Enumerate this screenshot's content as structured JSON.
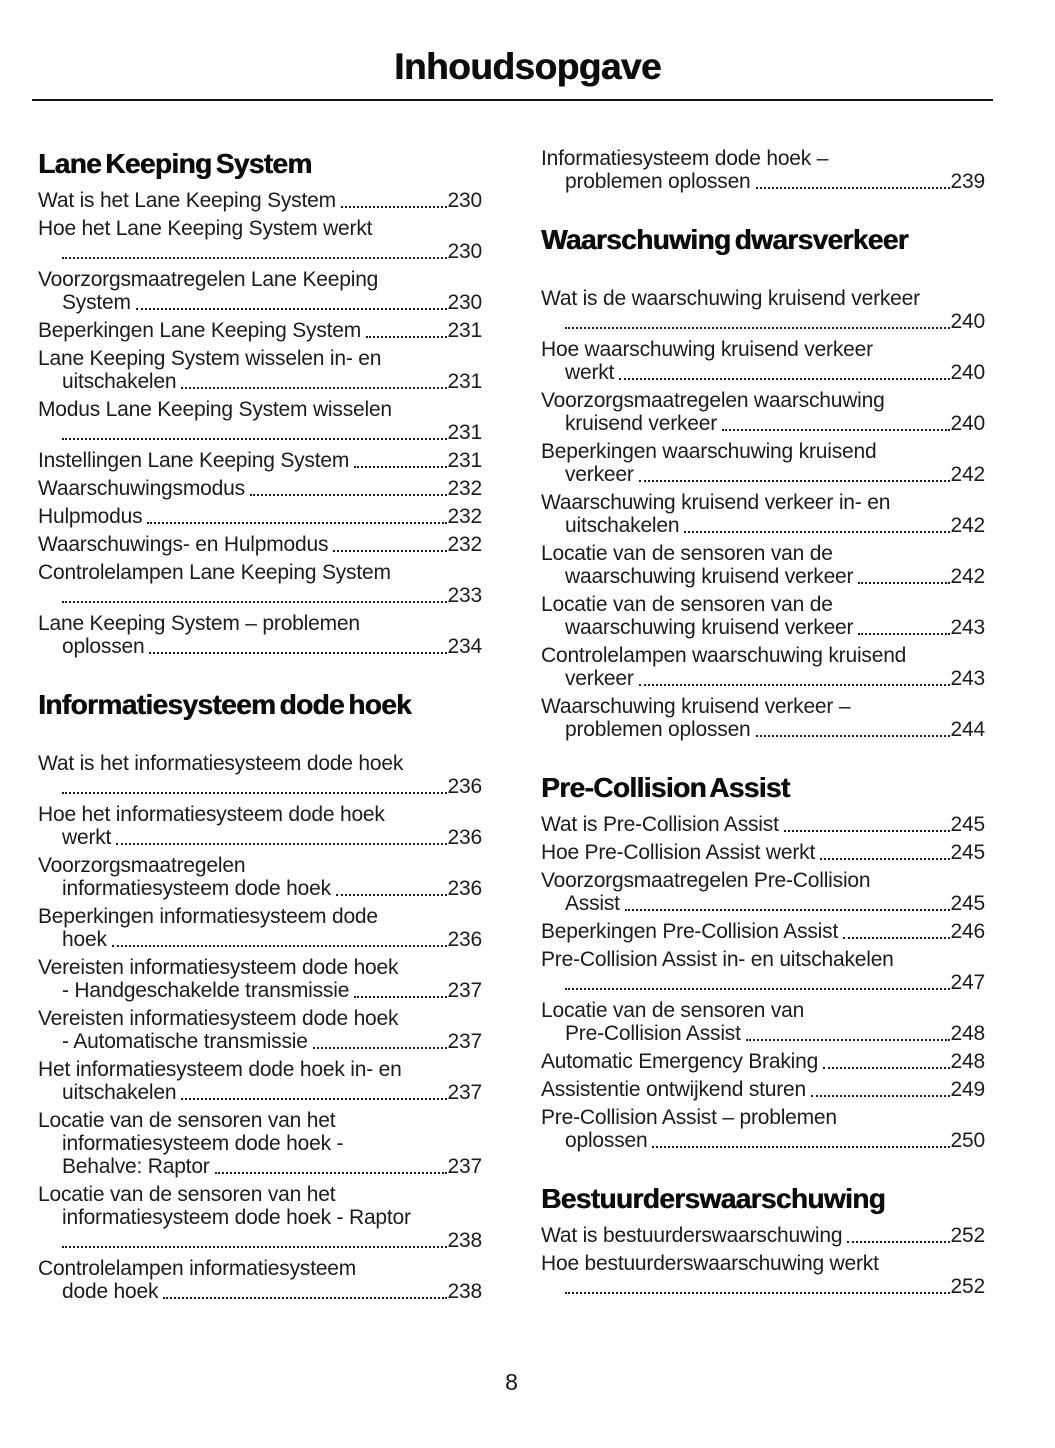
{
  "page": {
    "title": "Inhoudsopgave",
    "page_number": "8"
  },
  "columns": [
    {
      "blocks": [
        {
          "heading": "Lane Keeping System",
          "gap_after_heading": false,
          "entries": [
            {
              "lines": [
                "Wat is het Lane Keeping System"
              ],
              "page": "230"
            },
            {
              "lines": [
                "Hoe het Lane Keeping System werkt",
                ""
              ],
              "page": "230"
            },
            {
              "lines": [
                "Voorzorgsmaatregelen Lane Keeping",
                "System"
              ],
              "page": "230"
            },
            {
              "lines": [
                "Beperkingen Lane Keeping System"
              ],
              "page": "231"
            },
            {
              "lines": [
                "Lane Keeping System wisselen in- en",
                "uitschakelen"
              ],
              "page": "231"
            },
            {
              "lines": [
                "Modus Lane Keeping System wisselen",
                ""
              ],
              "page": "231"
            },
            {
              "lines": [
                "Instellingen Lane Keeping System"
              ],
              "page": "231"
            },
            {
              "lines": [
                "Waarschuwingsmodus"
              ],
              "page": "232"
            },
            {
              "lines": [
                "Hulpmodus"
              ],
              "page": "232"
            },
            {
              "lines": [
                "Waarschuwings- en Hulpmodus"
              ],
              "page": "232"
            },
            {
              "lines": [
                "Controlelampen Lane Keeping System",
                ""
              ],
              "page": "233"
            },
            {
              "lines": [
                "Lane Keeping System – problemen",
                "oplossen"
              ],
              "page": "234"
            }
          ]
        },
        {
          "heading": "Informatiesysteem dode hoek",
          "gap_after_heading": true,
          "entries": [
            {
              "lines": [
                "Wat is het informatiesysteem dode hoek",
                ""
              ],
              "page": "236"
            },
            {
              "lines": [
                "Hoe het informatiesysteem dode hoek",
                "werkt"
              ],
              "page": "236"
            },
            {
              "lines": [
                "Voorzorgsmaatregelen",
                "informatiesysteem dode hoek"
              ],
              "page": "236"
            },
            {
              "lines": [
                "Beperkingen informatiesysteem dode",
                "hoek"
              ],
              "page": "236"
            },
            {
              "lines": [
                "Vereisten informatiesysteem dode hoek",
                "- Handgeschakelde transmissie"
              ],
              "page": "237"
            },
            {
              "lines": [
                "Vereisten informatiesysteem dode hoek",
                "- Automatische transmissie"
              ],
              "page": "237"
            },
            {
              "lines": [
                "Het informatiesysteem dode hoek in- en",
                "uitschakelen"
              ],
              "page": "237"
            },
            {
              "lines": [
                "Locatie van de sensoren van het",
                "informatiesysteem dode hoek -",
                "Behalve: Raptor"
              ],
              "page": "237"
            },
            {
              "lines": [
                "Locatie van de sensoren van het",
                "informatiesysteem dode hoek - Raptor",
                ""
              ],
              "page": "238"
            },
            {
              "lines": [
                "Controlelampen informatiesysteem",
                "dode hoek"
              ],
              "page": "238"
            }
          ]
        }
      ]
    },
    {
      "blocks": [
        {
          "heading": null,
          "gap_after_heading": false,
          "entries": [
            {
              "lines": [
                "Informatiesysteem dode hoek –",
                "problemen oplossen"
              ],
              "page": "239"
            }
          ]
        },
        {
          "heading": "Waarschuwing dwarsverkeer",
          "gap_after_heading": true,
          "entries": [
            {
              "lines": [
                "Wat is de waarschuwing kruisend verkeer",
                ""
              ],
              "page": "240"
            },
            {
              "lines": [
                "Hoe waarschuwing kruisend verkeer",
                "werkt"
              ],
              "page": "240"
            },
            {
              "lines": [
                "Voorzorgsmaatregelen waarschuwing",
                "kruisend verkeer"
              ],
              "page": "240"
            },
            {
              "lines": [
                "Beperkingen waarschuwing kruisend",
                "verkeer"
              ],
              "page": "242"
            },
            {
              "lines": [
                "Waarschuwing kruisend verkeer in- en",
                "uitschakelen"
              ],
              "page": "242"
            },
            {
              "lines": [
                "Locatie van de sensoren van de",
                "waarschuwing kruisend verkeer"
              ],
              "page": "242"
            },
            {
              "lines": [
                "Locatie van de sensoren van de",
                "waarschuwing kruisend verkeer"
              ],
              "page": "243"
            },
            {
              "lines": [
                "Controlelampen waarschuwing kruisend",
                "verkeer"
              ],
              "page": "243"
            },
            {
              "lines": [
                "Waarschuwing kruisend verkeer –",
                "problemen oplossen"
              ],
              "page": "244"
            }
          ]
        },
        {
          "heading": "Pre-Collision Assist",
          "gap_after_heading": false,
          "entries": [
            {
              "lines": [
                "Wat is Pre-Collision Assist"
              ],
              "page": "245"
            },
            {
              "lines": [
                "Hoe Pre-Collision Assist werkt"
              ],
              "page": "245"
            },
            {
              "lines": [
                "Voorzorgsmaatregelen Pre-Collision",
                "Assist"
              ],
              "page": "245"
            },
            {
              "lines": [
                "Beperkingen Pre-Collision Assist"
              ],
              "page": "246"
            },
            {
              "lines": [
                "Pre-Collision Assist in- en uitschakelen",
                ""
              ],
              "page": "247"
            },
            {
              "lines": [
                "Locatie van de sensoren van",
                "Pre-Collision Assist"
              ],
              "page": "248"
            },
            {
              "lines": [
                "Automatic Emergency Braking"
              ],
              "page": "248"
            },
            {
              "lines": [
                "Assistentie ontwijkend sturen"
              ],
              "page": "249"
            },
            {
              "lines": [
                "Pre-Collision Assist – problemen",
                "oplossen"
              ],
              "page": "250"
            }
          ]
        },
        {
          "heading": "Bestuurderswaarschuwing",
          "gap_after_heading": false,
          "entries": [
            {
              "lines": [
                "Wat is bestuurderswaarschuwing"
              ],
              "page": "252"
            },
            {
              "lines": [
                "Hoe bestuurderswaarschuwing werkt",
                ""
              ],
              "page": "252"
            }
          ]
        }
      ]
    }
  ]
}
